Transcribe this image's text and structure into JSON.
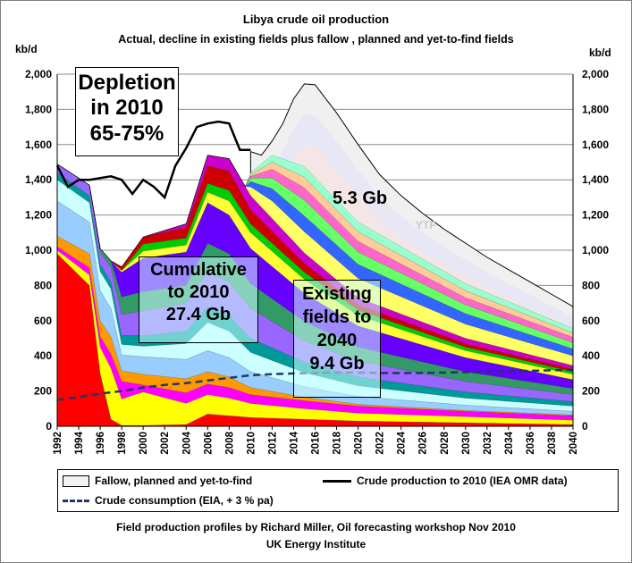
{
  "chart_data": {
    "type": "area",
    "title": "Libya crude oil production",
    "subtitle": "Actual, decline in existing fields plus fallow , planned and yet-to-find  fields",
    "ylabel_left": "kb/d",
    "ylabel_right": "kb/d",
    "ylim": [
      0,
      2000
    ],
    "yticks": [
      "0",
      "200",
      "400",
      "600",
      "800",
      "1,000",
      "1,200",
      "1,400",
      "1,600",
      "1,800",
      "2,000"
    ],
    "xlim": [
      1992,
      2040
    ],
    "xticks": [
      "1992",
      "1994",
      "1996",
      "1998",
      "2000",
      "2002",
      "2004",
      "2006",
      "2008",
      "2010",
      "2012",
      "2014",
      "2016",
      "2018",
      "2020",
      "2022",
      "2024",
      "2026",
      "2028",
      "2030",
      "2032",
      "2034",
      "2036",
      "2038",
      "2040"
    ],
    "grid": true,
    "legend_position": "bottom",
    "series": [
      {
        "name": "Fallow, planned and yet-to-find",
        "kind": "area",
        "x": [
          2010,
          2011,
          2012,
          2013,
          2014,
          2015,
          2016,
          2018,
          2020,
          2022,
          2024,
          2026,
          2028,
          2030,
          2032,
          2034,
          2036,
          2038,
          2040
        ],
        "values": [
          1560,
          1540,
          1620,
          1720,
          1860,
          1945,
          1940,
          1780,
          1600,
          1430,
          1310,
          1210,
          1120,
          1040,
          960,
          890,
          820,
          750,
          680
        ]
      },
      {
        "name": "Crude production to 2010 (IEA OMR data)",
        "kind": "line",
        "x": [
          1992,
          1993,
          1994,
          1995,
          1996,
          1997,
          1998,
          1999,
          2000,
          2001,
          2002,
          2003,
          2004,
          2005,
          2006,
          2007,
          2008,
          2009,
          2010
        ],
        "values": [
          1480,
          1360,
          1400,
          1400,
          1410,
          1420,
          1400,
          1320,
          1400,
          1360,
          1300,
          1480,
          1580,
          1700,
          1720,
          1730,
          1720,
          1570,
          1570
        ]
      },
      {
        "name": "Crude consumption (EIA, + 3 % pa)",
        "kind": "dashed-line",
        "x": [
          1992,
          1994,
          1996,
          1998,
          2000,
          2002,
          2004,
          2006,
          2008,
          2010,
          2012,
          2014,
          2016,
          2018,
          2020,
          2022,
          2024,
          2026,
          2028,
          2030,
          2032,
          2034,
          2036,
          2038,
          2040
        ],
        "values": [
          150,
          165,
          185,
          200,
          220,
          235,
          245,
          260,
          275,
          290,
          296,
          300,
          302,
          305,
          305,
          303,
          302,
          303,
          305,
          308,
          310,
          312,
          315,
          318,
          320
        ]
      }
    ],
    "stacked_layers": [
      {
        "color": "#ff0000",
        "x": [
          1992,
          1995,
          1996,
          1997,
          1998,
          2000,
          2004,
          2006,
          2008,
          2010,
          2015,
          2020,
          2030,
          2040
        ],
        "values": [
          980,
          800,
          300,
          40,
          5,
          5,
          10,
          70,
          60,
          50,
          40,
          30,
          20,
          10
        ]
      },
      {
        "color": "#ffff00",
        "x": [
          1992,
          1995,
          1996,
          1997,
          1998,
          2000,
          2004,
          2006,
          2008,
          2010,
          2015,
          2020,
          2030,
          2040
        ],
        "values": [
          20,
          60,
          150,
          290,
          150,
          190,
          120,
          110,
          100,
          80,
          60,
          45,
          35,
          25
        ]
      },
      {
        "color": "#ff00ff",
        "x": [
          1992,
          1995,
          1997,
          1998,
          2000,
          2004,
          2006,
          2008,
          2010,
          2015,
          2020,
          2030,
          2040
        ],
        "values": [
          20,
          40,
          80,
          100,
          40,
          60,
          60,
          60,
          50,
          45,
          40,
          30,
          25
        ]
      },
      {
        "color": "#ff9900",
        "x": [
          1992,
          1995,
          1997,
          1998,
          2000,
          2004,
          2006,
          2008,
          2010,
          2015,
          2020,
          2030,
          2040
        ],
        "values": [
          60,
          80,
          100,
          60,
          60,
          80,
          70,
          60,
          40,
          20,
          10,
          5,
          5
        ]
      },
      {
        "color": "#99ccff",
        "x": [
          1992,
          1995,
          1997,
          1998,
          2000,
          2004,
          2006,
          2008,
          2010,
          2015,
          2020,
          2030,
          2040
        ],
        "values": [
          200,
          180,
          160,
          90,
          100,
          110,
          120,
          110,
          90,
          60,
          45,
          30,
          20
        ]
      },
      {
        "color": "#ccffff",
        "x": [
          1992,
          1995,
          1997,
          1998,
          2000,
          2004,
          2006,
          2008,
          2010,
          2015,
          2020,
          2030,
          2040
        ],
        "values": [
          120,
          110,
          110,
          60,
          60,
          90,
          160,
          150,
          110,
          80,
          60,
          40,
          30
        ]
      },
      {
        "color": "#009999",
        "x": [
          1992,
          1995,
          1997,
          1998,
          2000,
          2004,
          2006,
          2008,
          2010,
          2015,
          2020,
          2030,
          2040
        ],
        "values": [
          40,
          40,
          40,
          50,
          60,
          70,
          90,
          90,
          80,
          60,
          50,
          35,
          25
        ]
      },
      {
        "color": "#9966ff",
        "x": [
          1992,
          1995,
          1997,
          1998,
          2000,
          2004,
          2006,
          2008,
          2010,
          2015,
          2020,
          2030,
          2040
        ],
        "values": [
          50,
          60,
          80,
          120,
          140,
          160,
          200,
          190,
          170,
          120,
          90,
          60,
          40
        ]
      },
      {
        "color": "#339966",
        "x": [
          1992,
          1995,
          1997,
          1998,
          2000,
          2004,
          2006,
          2008,
          2010,
          2015,
          2020,
          2030,
          2040
        ],
        "values": [
          0,
          0,
          40,
          100,
          110,
          100,
          160,
          160,
          140,
          110,
          80,
          55,
          35
        ]
      },
      {
        "color": "#6600ff",
        "x": [
          1992,
          1995,
          1997,
          1998,
          2000,
          2004,
          2006,
          2008,
          2010,
          2015,
          2020,
          2030,
          2040
        ],
        "values": [
          0,
          0,
          0,
          140,
          190,
          190,
          230,
          220,
          200,
          160,
          120,
          80,
          50
        ]
      },
      {
        "color": "#ffff33",
        "x": [
          1992,
          1995,
          1997,
          1998,
          2000,
          2004,
          2006,
          2008,
          2010,
          2015,
          2020,
          2030,
          2040
        ],
        "values": [
          0,
          0,
          0,
          10,
          40,
          40,
          60,
          80,
          90,
          80,
          60,
          40,
          30
        ]
      },
      {
        "color": "#00cc00",
        "x": [
          1992,
          1995,
          1997,
          1998,
          2000,
          2004,
          2006,
          2008,
          2010,
          2015,
          2020,
          2030,
          2040
        ],
        "values": [
          0,
          0,
          0,
          0,
          40,
          40,
          50,
          60,
          50,
          40,
          30,
          20,
          15
        ]
      },
      {
        "color": "#cc0000",
        "x": [
          1992,
          1995,
          1997,
          1998,
          2000,
          2004,
          2006,
          2008,
          2010,
          2015,
          2020,
          2030,
          2040
        ],
        "values": [
          0,
          0,
          0,
          20,
          40,
          60,
          100,
          110,
          80,
          50,
          30,
          20,
          15
        ]
      },
      {
        "color": "#cc00cc",
        "x": [
          1992,
          1995,
          1997,
          1998,
          2000,
          2004,
          2006,
          2008,
          2010,
          2015,
          2020,
          2030,
          2040
        ],
        "values": [
          0,
          0,
          0,
          0,
          0,
          20,
          60,
          70,
          80,
          60,
          40,
          30,
          20
        ]
      },
      {
        "color": "#ffff66",
        "x": [
          2010,
          2012,
          2015,
          2020,
          2030,
          2040
        ],
        "values": [
          50,
          100,
          120,
          110,
          80,
          55
        ]
      },
      {
        "color": "#3366ff",
        "x": [
          2010,
          2012,
          2015,
          2020,
          2030,
          2040
        ],
        "values": [
          30,
          70,
          90,
          80,
          60,
          40
        ]
      },
      {
        "color": "#66ff66",
        "x": [
          2010,
          2012,
          2015,
          2020,
          2030,
          2040
        ],
        "values": [
          20,
          60,
          90,
          70,
          50,
          35
        ]
      },
      {
        "color": "#ff66cc",
        "x": [
          2010,
          2012,
          2015,
          2020,
          2030,
          2040
        ],
        "values": [
          10,
          50,
          70,
          60,
          40,
          30
        ]
      },
      {
        "color": "#ffcc99",
        "x": [
          2010,
          2012,
          2015,
          2020,
          2030,
          2040
        ],
        "values": [
          10,
          40,
          60,
          55,
          40,
          25
        ]
      },
      {
        "color": "#99ffcc",
        "x": [
          2010,
          2012,
          2015,
          2020,
          2030,
          2040
        ],
        "values": [
          10,
          40,
          60,
          55,
          40,
          25
        ]
      }
    ],
    "annotations": {
      "depletion": [
        "Depletion",
        "in 2010",
        "65-75%"
      ],
      "cumulative": [
        "Cumulative",
        "to 2010",
        "27.4 Gb"
      ],
      "existing": [
        "Existing",
        "fields to",
        "2040",
        "9.4 Gb"
      ],
      "yet_to_find_total": "5.3 Gb",
      "ytf_label": "YTF"
    }
  },
  "footer": {
    "line1": "Field production profiles  by Richard Miller, Oil forecasting workshop Nov 2010",
    "line2": "UK Energy Institute"
  }
}
